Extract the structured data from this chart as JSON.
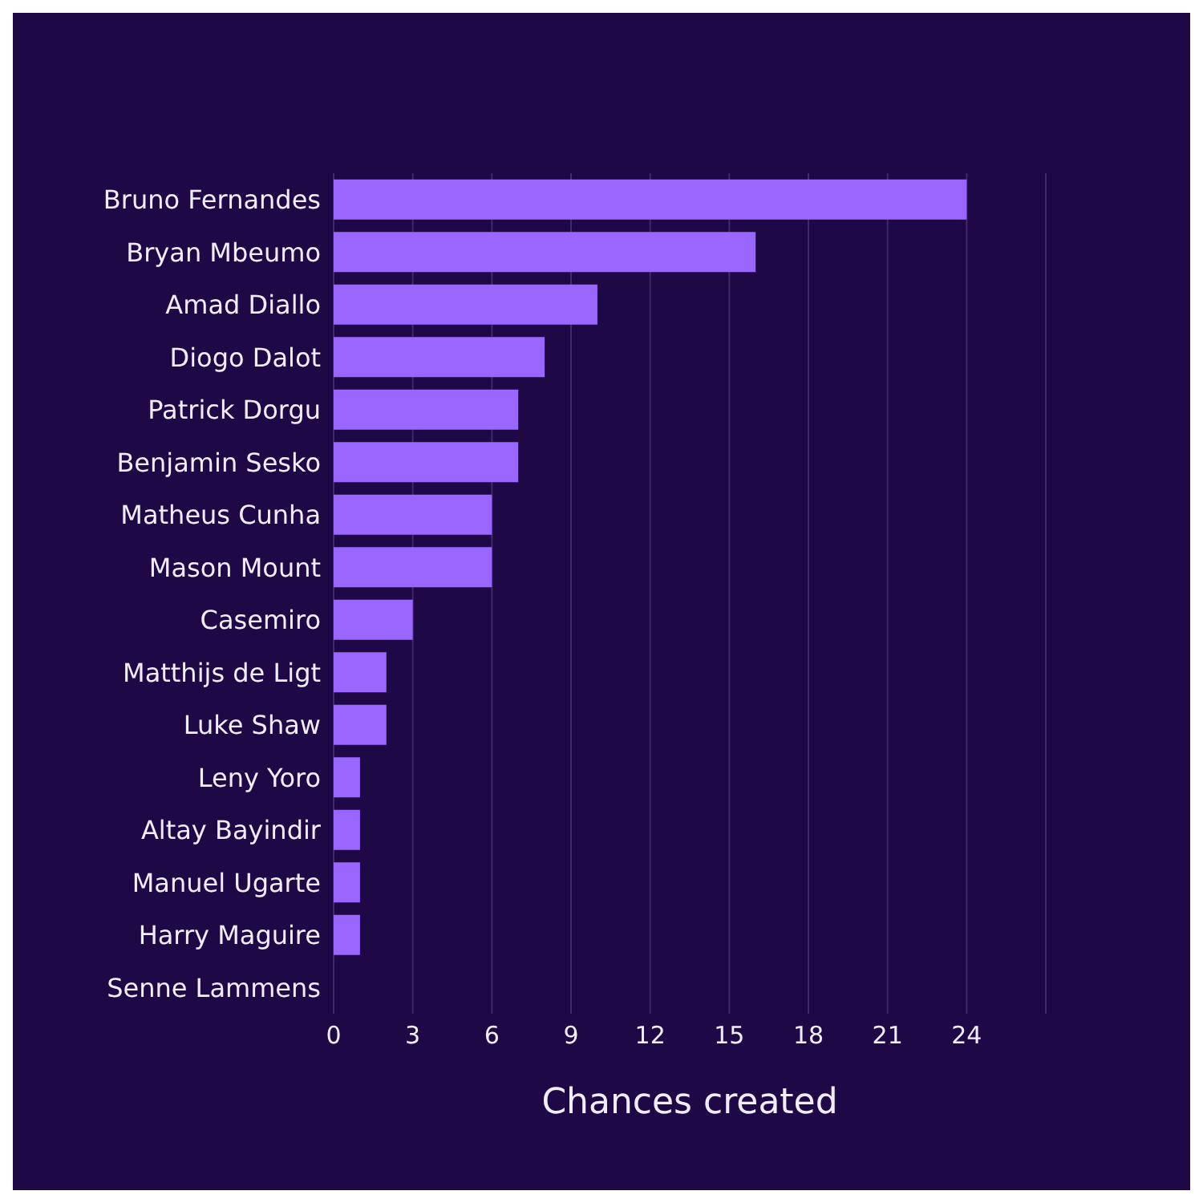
{
  "chart_data": {
    "type": "bar",
    "orientation": "horizontal",
    "xlabel": "Chances created",
    "categories": [
      "Bruno Fernandes",
      "Bryan Mbeumo",
      "Amad Diallo",
      "Diogo Dalot",
      "Patrick Dorgu",
      "Benjamin Sesko",
      "Matheus Cunha",
      "Mason Mount",
      "Casemiro",
      "Matthijs de Ligt",
      "Luke Shaw",
      "Leny Yoro",
      "Altay Bayindir",
      "Manuel Ugarte",
      "Harry Maguire",
      "Senne Lammens"
    ],
    "values": [
      24,
      16,
      10,
      8,
      7,
      7,
      6,
      6,
      3,
      2,
      2,
      1,
      1,
      1,
      1,
      0
    ],
    "color": "#9966ff",
    "xlim": [
      0,
      27
    ],
    "xticks": [
      0,
      3,
      6,
      9,
      12,
      15,
      18,
      21,
      24
    ],
    "grid": "x",
    "legend": false
  }
}
